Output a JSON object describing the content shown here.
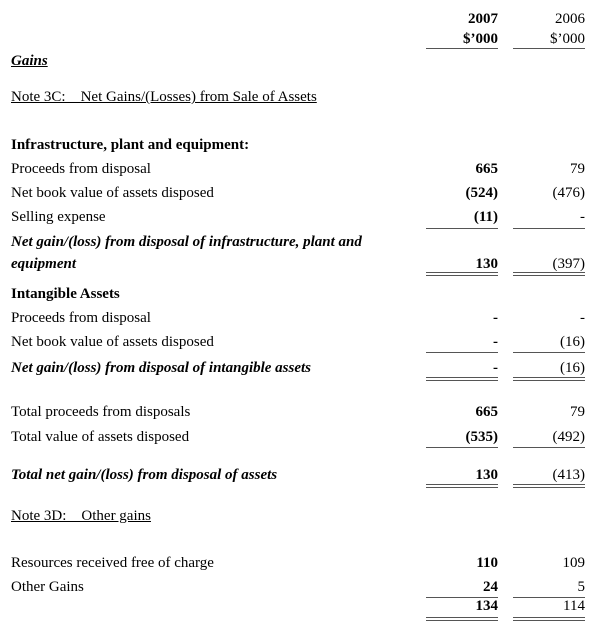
{
  "header": {
    "col1_year": "2007",
    "col1_unit": "$’000",
    "col2_year": "2006",
    "col2_unit": "$’000"
  },
  "section_title": "Gains",
  "note3c": {
    "title": "Note 3C:    Net Gains/(Losses) from Sale of Assets",
    "rows": [
      {
        "label": "Infrastructure, plant and equipment:",
        "v2007": "",
        "v2006": ""
      },
      {
        "label": "Proceeds from disposal",
        "v2007": "665",
        "v2006": "79"
      },
      {
        "label": "Net book value of assets disposed",
        "v2007": "(524)",
        "v2006": "(476)"
      },
      {
        "label": "Selling expense",
        "v2007": "(11)",
        "v2006": "-"
      },
      {
        "label": "Net gain/(loss) from disposal of infrastructure, plant and",
        "label2": "equipment",
        "v2007": "130",
        "v2006": "(397)"
      },
      {
        "label": "Intangible Assets",
        "v2007": "",
        "v2006": ""
      },
      {
        "label": "Proceeds from disposal",
        "v2007": "-",
        "v2006": "-"
      },
      {
        "label": "Net book value of assets disposed",
        "v2007": "-",
        "v2006": "(16)"
      },
      {
        "label": "Net gain/(loss) from disposal of intangible assets",
        "v2007": "-",
        "v2006": "(16)"
      },
      {
        "label": "Total proceeds from disposals",
        "v2007": "665",
        "v2006": "79"
      },
      {
        "label": "Total value of assets disposed",
        "v2007": "(535)",
        "v2006": "(492)"
      },
      {
        "label": "Total net gain/(loss) from disposal of assets",
        "v2007": "130",
        "v2006": "(413)"
      }
    ]
  },
  "note3d": {
    "title": "Note 3D:    Other gains",
    "rows": [
      {
        "label": "Resources received free of charge",
        "v2007": "110",
        "v2006": "109"
      },
      {
        "label": "Other Gains",
        "v2007": "24",
        "v2006": "5"
      },
      {
        "label": "",
        "v2007": "134",
        "v2006": "114"
      }
    ]
  }
}
